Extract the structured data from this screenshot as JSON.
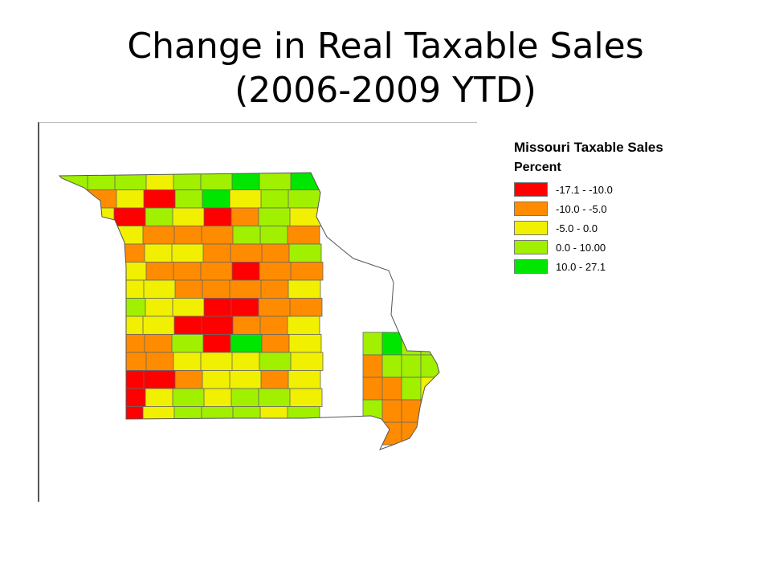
{
  "title": {
    "line1": "Change in Real Taxable Sales",
    "line2": "(2006-2009 YTD)"
  },
  "legend": {
    "title": "Missouri Taxable Sales",
    "subtitle": "Percent",
    "classes": [
      {
        "key": "c1",
        "label": "-17.1 - -10.0",
        "color": "#ff0000"
      },
      {
        "key": "c2",
        "label": "-10.0 - -5.0",
        "color": "#ff8c00"
      },
      {
        "key": "c3",
        "label": "-5.0 - 0.0",
        "color": "#f0f000"
      },
      {
        "key": "c4",
        "label": "0.0 - 10.00",
        "color": "#a0f000"
      },
      {
        "key": "c5",
        "label": "10.0 - 27.1",
        "color": "#00e600"
      }
    ]
  },
  "map": {
    "region": "Missouri",
    "county_class_grid": [
      [
        "c4",
        "c4",
        "c4",
        "c3",
        "c4",
        "c4",
        "c5",
        "c4",
        "c5"
      ],
      [
        "c4",
        "c2",
        "c3",
        "c1",
        "c4",
        "c5",
        "c3",
        "c4",
        "c4"
      ],
      [
        "c3",
        "c3",
        "c1",
        "c4",
        "c3",
        "c1",
        "c2",
        "c4",
        "c3"
      ],
      [
        "c2",
        "c1",
        "c3",
        "c2",
        "c2",
        "c2",
        "c4",
        "c4",
        "c2"
      ],
      [
        "c2",
        "c3",
        "c2",
        "c3",
        "c3",
        "c2",
        "c2",
        "c2",
        "c4"
      ],
      [
        "c3",
        "c3",
        "c3",
        "c2",
        "c2",
        "c2",
        "c1",
        "c2",
        "c2"
      ],
      [
        "c3",
        "c2",
        "c3",
        "c3",
        "c2",
        "c2",
        "c2",
        "c2",
        "c3"
      ],
      [
        "c2",
        "c4",
        "c4",
        "c3",
        "c3",
        "c1",
        "c1",
        "c2",
        "c2"
      ],
      [
        "c3",
        "c3",
        "c3",
        "c3",
        "c1",
        "c1",
        "c2",
        "c2",
        "c3"
      ],
      [
        "c1",
        "c2",
        "c2",
        "c2",
        "c4",
        "c1",
        "c5",
        "c2",
        "c3"
      ],
      [
        "c2",
        "c3",
        "c2",
        "c2",
        "c3",
        "c3",
        "c3",
        "c4",
        "c3"
      ],
      [
        "c2",
        "c3",
        "c1",
        "c1",
        "c2",
        "c3",
        "c3",
        "c2",
        "c3"
      ],
      [
        "c3",
        "c2",
        "c1",
        "c3",
        "c4",
        "c3",
        "c4",
        "c4",
        "c3"
      ],
      [
        "c4",
        "c2",
        "c1",
        "c3",
        "c4",
        "c4",
        "c4",
        "c3",
        "c4"
      ]
    ],
    "bootheel_class_grid": [
      [
        "c4",
        "c5",
        "c4",
        "c4"
      ],
      [
        "c2",
        "c4",
        "c4",
        "c4"
      ],
      [
        "c2",
        "c2",
        "c4",
        "c3"
      ],
      [
        "c4",
        "c2",
        "c2",
        "c4"
      ],
      [
        "c4",
        "c2",
        "c2",
        "c3"
      ]
    ]
  }
}
